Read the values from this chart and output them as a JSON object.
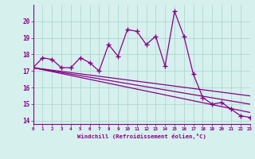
{
  "xlabel": "Windchill (Refroidissement éolien,°C)",
  "bg_color": "#d6f0ee",
  "grid_color": "#b0d8d0",
  "line_color": "#880088",
  "hours": [
    0,
    1,
    2,
    3,
    4,
    5,
    6,
    7,
    8,
    9,
    10,
    11,
    12,
    13,
    14,
    15,
    16,
    17,
    18,
    19,
    20,
    21,
    22,
    23
  ],
  "main_values": [
    17.2,
    17.8,
    17.7,
    17.2,
    17.2,
    17.8,
    17.5,
    17.0,
    18.6,
    17.9,
    19.5,
    19.4,
    18.6,
    19.1,
    17.3,
    20.6,
    19.1,
    16.8,
    15.4,
    15.0,
    15.1,
    14.7,
    14.3,
    14.2
  ],
  "diag_lines": [
    [
      17.2,
      15.5
    ],
    [
      17.2,
      15.0
    ],
    [
      17.2,
      14.5
    ]
  ],
  "ylim": [
    13.8,
    21.0
  ],
  "xlim": [
    0,
    23
  ]
}
